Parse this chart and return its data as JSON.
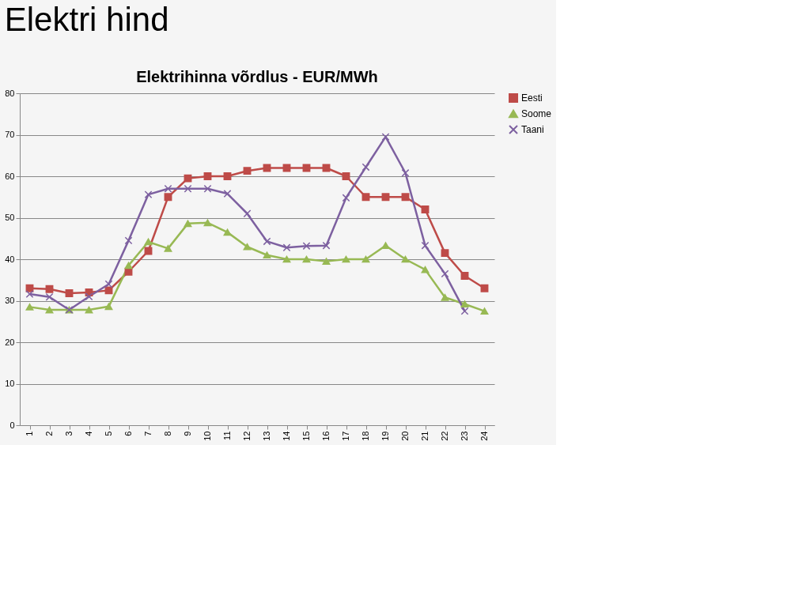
{
  "chart_data": {
    "type": "line",
    "title": "Elektri hind",
    "subtitle": "Elektrihinna võrdlus - EUR/MWh",
    "categories": [
      "1",
      "2",
      "3",
      "4",
      "5",
      "6",
      "7",
      "8",
      "9",
      "10",
      "11",
      "12",
      "13",
      "14",
      "15",
      "16",
      "17",
      "18",
      "19",
      "20",
      "21",
      "22",
      "23",
      "24"
    ],
    "ylim": [
      0,
      80
    ],
    "yticks": [
      0,
      10,
      20,
      30,
      40,
      50,
      60,
      70,
      80
    ],
    "grid": "y",
    "legend": "right",
    "line_style": "solid",
    "series": [
      {
        "name": "Eesti",
        "color": "#be4b48",
        "marker": "square",
        "values": [
          33,
          32.8,
          31.8,
          32,
          32.5,
          37,
          42,
          55,
          59.5,
          60,
          60,
          61.3,
          62,
          62,
          62,
          62,
          60,
          55,
          55,
          55,
          52,
          41.5,
          36,
          33
        ]
      },
      {
        "name": "Soome",
        "color": "#98b954",
        "marker": "triangle",
        "values": [
          28.5,
          27.8,
          27.8,
          27.8,
          28.6,
          38.5,
          44.2,
          42.6,
          48.6,
          48.8,
          46.5,
          43,
          41,
          40,
          40,
          39.5,
          40,
          40,
          43.3,
          40,
          37.5,
          30.8,
          29.2,
          27.5
        ]
      },
      {
        "name": "Taani",
        "color": "#7d60a0",
        "marker": "cross",
        "values": [
          31.6,
          30.9,
          27.8,
          31,
          34,
          44.5,
          55.6,
          57,
          57,
          57,
          55.8,
          51,
          44.3,
          42.8,
          43.2,
          43.3,
          54.8,
          62.2,
          69.5,
          60.8,
          43.3,
          36.5,
          27.5,
          null
        ]
      }
    ]
  }
}
